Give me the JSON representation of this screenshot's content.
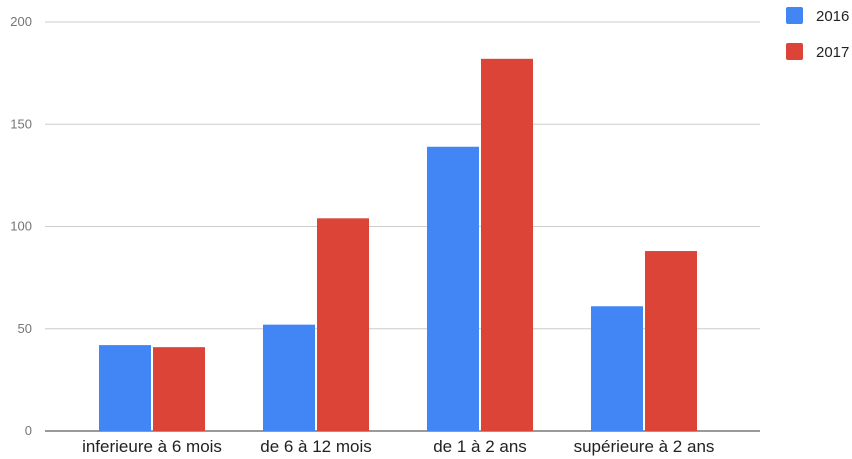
{
  "chart_data": {
    "type": "bar",
    "title": "",
    "xlabel": "",
    "ylabel": "",
    "categories": [
      "inferieure à 6 mois",
      "de 6 à 12 mois",
      "de 1 à 2 ans",
      "supérieure à 2 ans"
    ],
    "series": [
      {
        "name": "2016",
        "color": "#4285f4",
        "values": [
          42,
          52,
          139,
          61
        ]
      },
      {
        "name": "2017",
        "color": "#db4437",
        "values": [
          41,
          104,
          182,
          88
        ]
      }
    ],
    "ylim": [
      0,
      200
    ],
    "yticks": [
      0,
      50,
      100,
      150,
      200
    ],
    "grid": true,
    "legend_position": "top-right"
  }
}
